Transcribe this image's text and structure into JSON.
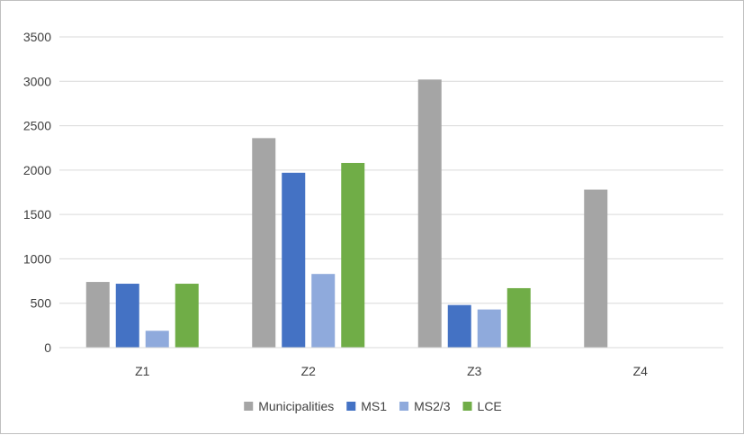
{
  "chart_data": {
    "type": "bar",
    "title": "",
    "xlabel": "",
    "ylabel": "",
    "categories": [
      "Z1",
      "Z2",
      "Z3",
      "Z4"
    ],
    "ylim": [
      0,
      3500
    ],
    "yticks": [
      0,
      500,
      1000,
      1500,
      2000,
      2500,
      3000,
      3500
    ],
    "grid": true,
    "legend_position": "bottom",
    "series": [
      {
        "name": "Municipalities",
        "color": "#a5a5a5",
        "values": [
          740,
          2360,
          3020,
          1780
        ]
      },
      {
        "name": "MS1",
        "color": "#4472c4",
        "values": [
          720,
          1970,
          480,
          null
        ]
      },
      {
        "name": "MS2/3",
        "color": "#8faadc",
        "values": [
          190,
          830,
          430,
          null
        ]
      },
      {
        "name": "LCE",
        "color": "#70ad47",
        "values": [
          720,
          2080,
          670,
          null
        ]
      }
    ]
  }
}
